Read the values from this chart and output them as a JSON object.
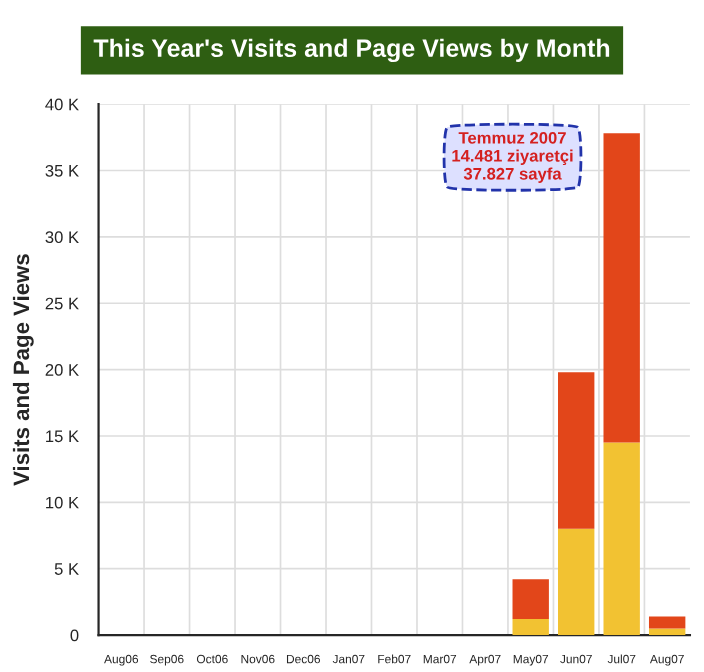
{
  "chart_data": {
    "type": "bar",
    "title": "This Year's Visits and Page Views by Month",
    "ylabel": "Visits and Page Views",
    "categories": [
      "Aug06",
      "Sep06",
      "Oct06",
      "Nov06",
      "Dec06",
      "Jan07",
      "Feb07",
      "Mar07",
      "Apr07",
      "May07",
      "Jun07",
      "Jul07",
      "Aug07"
    ],
    "stacked": true,
    "series": [
      {
        "color": "#f2c232",
        "values": [
          0,
          0,
          0,
          0,
          0,
          0,
          0,
          0,
          0,
          1.2,
          8.0,
          14.5,
          0.5
        ]
      },
      {
        "color": "#e2461a",
        "values": [
          0,
          0,
          0,
          0,
          0,
          0,
          0,
          0,
          0,
          3.0,
          11.8,
          23.3,
          0.9
        ]
      }
    ],
    "ylim": [
      0,
      40
    ],
    "yticks": [
      0,
      {
        "value": 5,
        "label": "5 K"
      },
      {
        "value": 10,
        "label": "10 K"
      },
      {
        "value": 15,
        "label": "15 K"
      },
      {
        "value": 20,
        "label": "20 K"
      },
      {
        "value": 25,
        "label": "25 K"
      },
      {
        "value": 30,
        "label": "30 K"
      },
      {
        "value": 35,
        "label": "35 K"
      },
      {
        "value": 40,
        "label": "40 K"
      }
    ],
    "grid": true,
    "annotations": [
      "Temmuz 2007\n14.481 ziyaretçi\n37.827 sayfa"
    ]
  }
}
